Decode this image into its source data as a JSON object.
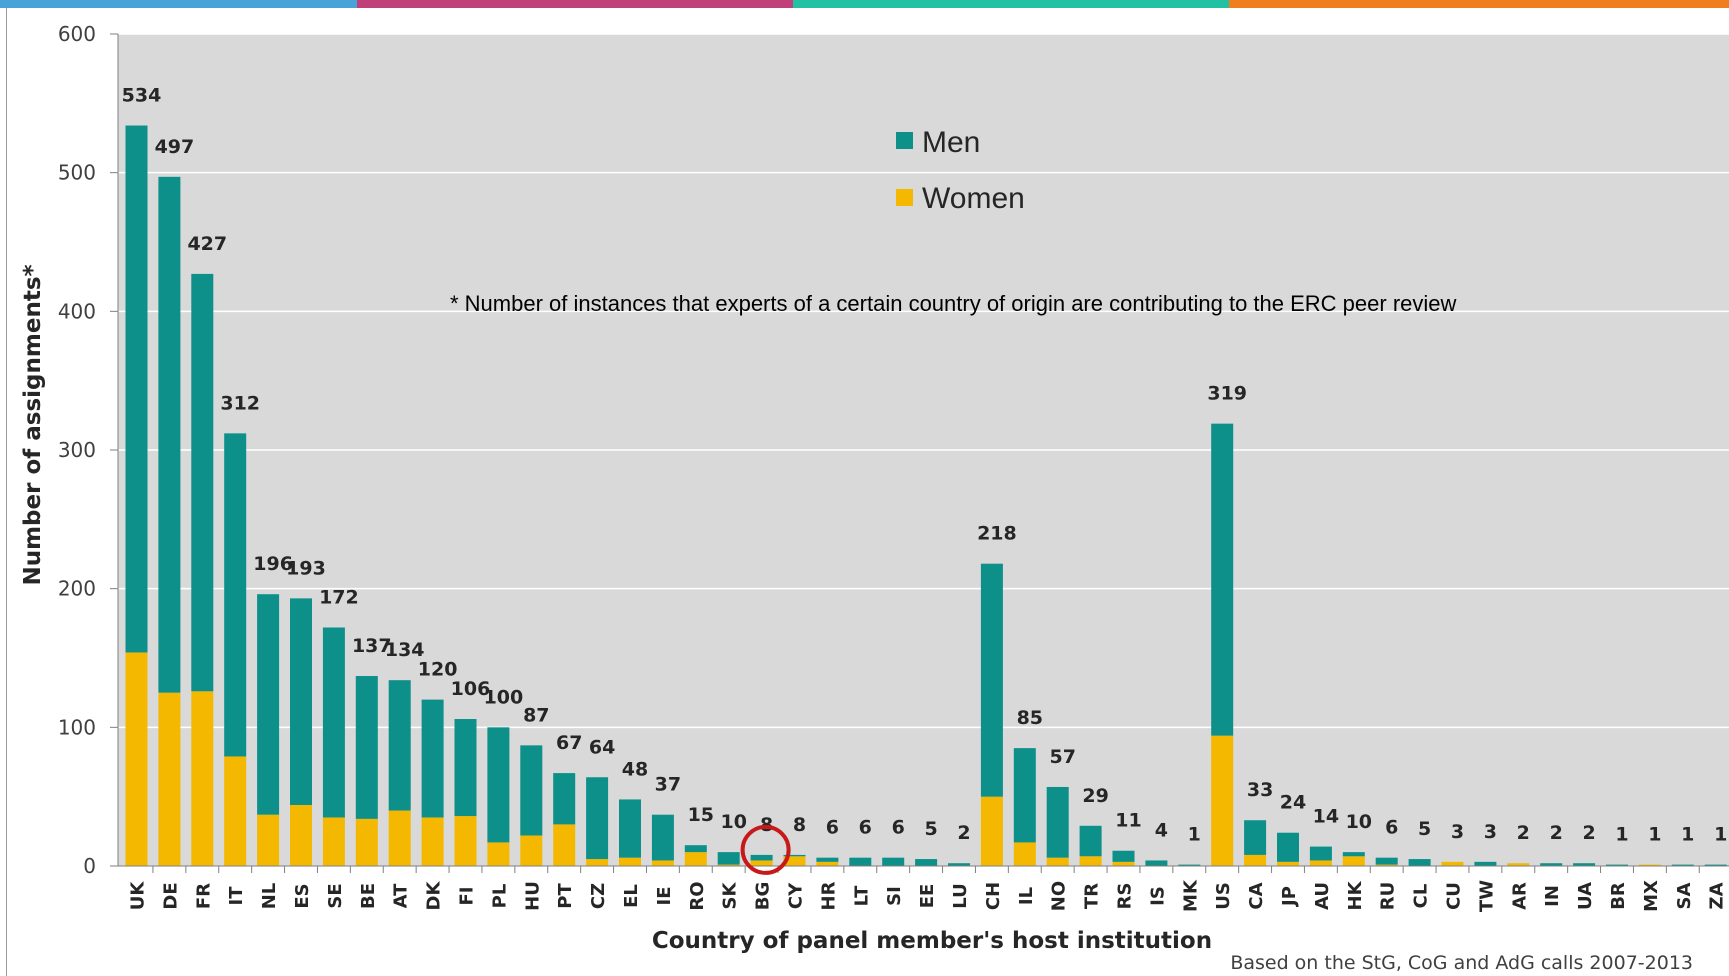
{
  "top_bar_colors": [
    "#4aa3d8",
    "#c0417a",
    "#22c1a3",
    "#f07e1e"
  ],
  "chart_data": {
    "type": "bar",
    "stacked": true,
    "title": "",
    "xlabel": "Country of panel member's host institution",
    "ylabel": "Number of assignments*",
    "ylim": [
      0,
      600
    ],
    "yticks": [
      0,
      100,
      200,
      300,
      400,
      500,
      600
    ],
    "grid": true,
    "legend_position": "top-center",
    "categories": [
      "UK",
      "DE",
      "FR",
      "IT",
      "NL",
      "ES",
      "SE",
      "BE",
      "AT",
      "DK",
      "FI",
      "PL",
      "HU",
      "PT",
      "CZ",
      "EL",
      "IE",
      "RO",
      "SK",
      "BG",
      "CY",
      "HR",
      "LT",
      "SI",
      "EE",
      "LU",
      "CH",
      "IL",
      "NO",
      "TR",
      "RS",
      "IS",
      "MK",
      "US",
      "CA",
      "JP",
      "AU",
      "HK",
      "RU",
      "CL",
      "CU",
      "TW",
      "AR",
      "IN",
      "UA",
      "BR",
      "MX",
      "SA",
      "ZA"
    ],
    "totals": [
      534,
      497,
      427,
      312,
      196,
      193,
      172,
      137,
      134,
      120,
      106,
      100,
      87,
      67,
      64,
      48,
      37,
      15,
      10,
      8,
      8,
      6,
      6,
      6,
      5,
      2,
      218,
      85,
      57,
      29,
      11,
      4,
      1,
      319,
      33,
      24,
      14,
      10,
      6,
      5,
      3,
      3,
      2,
      2,
      2,
      1,
      1,
      1,
      1
    ],
    "series": [
      {
        "name": "Men",
        "color": "#0d8f8a",
        "values": [
          380,
          372,
          301,
          233,
          159,
          149,
          137,
          103,
          94,
          85,
          70,
          83,
          65,
          37,
          59,
          42,
          33,
          5,
          9,
          4,
          1,
          3,
          6,
          6,
          5,
          2,
          168,
          68,
          51,
          22,
          8,
          4,
          1,
          225,
          25,
          21,
          10,
          3,
          5,
          5,
          0,
          3,
          0,
          2,
          2,
          1,
          0,
          1,
          1
        ]
      },
      {
        "name": "Women",
        "color": "#f5b800",
        "values": [
          154,
          125,
          126,
          79,
          37,
          44,
          35,
          34,
          40,
          35,
          36,
          17,
          22,
          30,
          5,
          6,
          4,
          10,
          1,
          4,
          7,
          3,
          0,
          0,
          0,
          0,
          50,
          17,
          6,
          7,
          3,
          0,
          0,
          94,
          8,
          3,
          4,
          7,
          1,
          0,
          3,
          0,
          2,
          0,
          0,
          0,
          1,
          0,
          0
        ]
      }
    ],
    "highlight": {
      "category": "BG",
      "color": "#c8191a"
    },
    "annotation": "* Number of instances that experts of a certain country of origin are contributing to the ERC peer review",
    "source_note": "Based on the StG, CoG and AdG calls 2007-2013",
    "plot_background": "#d9d9d9"
  }
}
